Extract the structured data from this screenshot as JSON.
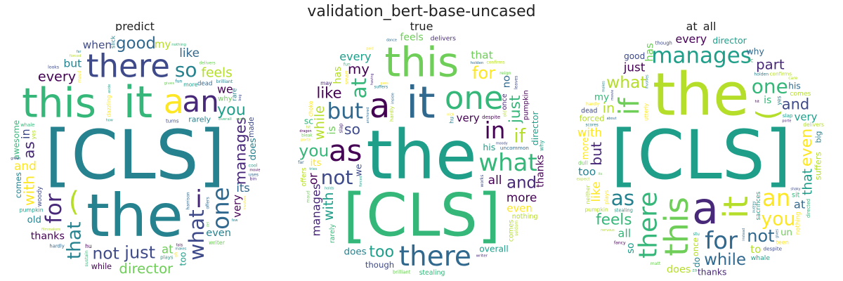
{
  "figure": {
    "title": "validation_bert-base-uncased"
  },
  "panels": [
    {
      "id": "predict",
      "title": "predict",
      "words": [
        "[CLS]",
        "the",
        "it",
        "this",
        "a",
        "there",
        "an",
        "(",
        "i",
        "one",
        "for",
        "what",
        "so",
        "that",
        "just",
        "not",
        "good",
        "you",
        "as",
        "manages",
        "with",
        "director",
        "every",
        "feels",
        "and",
        "like",
        "at",
        "its",
        "in",
        "we",
        "but",
        "when",
        "my",
        "very",
        "even",
        "thanks",
        "while",
        "rarely",
        "does",
        "old",
        "why",
        "too",
        "more",
        "pumpkin",
        "writer",
        "something",
        "brilliant",
        "awesome",
        "dazzling",
        "exquisite",
        "intriguing",
        "excessive",
        "directed",
        "delivers",
        "rare",
        "comes",
        "turns",
        "beautifully",
        "woody",
        "plays",
        "gives",
        "overall",
        "dead",
        "whale",
        "hardly",
        "nothing",
        "forced",
        "slick",
        "made",
        "sustain",
        "looks",
        "cool",
        "involves",
        "falls",
        "makes",
        "crack",
        "suffers",
        "harrison",
        "movie",
        "hilarious",
        "featuring",
        "filmmakers",
        "griffiths",
        "dense",
        "combining",
        "smart",
        "bennett",
        "bleak",
        "maud",
        "aside",
        "fun",
        "slap",
        "sacrifices",
        "building",
        "preach",
        "uses",
        "offers",
        "belongs",
        "altogether",
        "chilling",
        "corpus",
        "confirms",
        "entertain",
        "fancy",
        "how",
        "bog",
        "few",
        "porte",
        "anchored",
        "seldom",
        "hu",
        "outer",
        "choke",
        "green",
        "feature",
        "bin",
        "far",
        "det",
        "challenging",
        "stephen",
        "travels",
        "almost",
        "enormous",
        "professionally",
        "serving",
        "inside",
        "sometimes",
        "american",
        "teen",
        "taylor",
        "care",
        "some",
        "against",
        "based",
        "exciting",
        "yes",
        "reign",
        "collateral",
        "wince",
        "worth",
        "expect",
        "here",
        "del",
        "works",
        "complete",
        "puts",
        "oh",
        "still"
      ]
    },
    {
      "id": "true",
      "title": "true",
      "words": [
        "the",
        "[CLS]",
        "it",
        "this",
        "a",
        "one",
        "as",
        "there",
        "what",
        "in",
        "but",
        "at",
        "not",
        "if",
        "for",
        "you",
        "and",
        "too",
        "just",
        "like",
        "so",
        "my",
        "with",
        "while",
        "all",
        "more",
        "or",
        "manages",
        "every",
        "director",
        "that",
        "is",
        "very",
        "even",
        "no",
        "has",
        "feels",
        "thanks",
        "does",
        "its",
        "his",
        "we",
        "sc",
        "pumpkin",
        "overall",
        "nothing",
        "comes",
        "once",
        "offers",
        "rarely",
        "though",
        "stealing",
        "delivers",
        "uncommon",
        "suffers",
        "entertain",
        "bleak",
        "despite",
        "feature",
        "hardly",
        "writer",
        "slap",
        "smart",
        "holden",
        "inside",
        "porte",
        "brilliant",
        "hilarious",
        "characters",
        "reign",
        "forced",
        "choke",
        "determined",
        "chilling",
        "anchored",
        "confirms",
        "dragon",
        "leaves",
        "may",
        "fun",
        "tries",
        "holds",
        "why",
        "nick",
        "hit",
        "pass",
        "sticky",
        "belongs",
        "altogether",
        "taylor",
        "audrey",
        "moody",
        "shaky",
        "about",
        "travels",
        "sacrifices",
        "neither",
        "paid",
        "having",
        "maud",
        "seldom",
        "surprising",
        "combining",
        "attempts",
        "outer",
        "works",
        "old",
        "dance",
        "hu",
        "far",
        "care",
        "excessive",
        "instead",
        "featuring",
        "beautifully"
      ]
    },
    {
      "id": "at_all",
      "title": "at_all",
      "words": [
        "[CLS]",
        "the",
        "a",
        "this",
        "it",
        "there",
        "(",
        "if",
        "for",
        "an",
        "manages",
        "as",
        "one",
        "you",
        "not",
        "what",
        "while",
        "even",
        "feels",
        "and",
        "but",
        "part",
        "in",
        "that",
        "like",
        "just",
        "with",
        "at",
        "all",
        "every",
        "too",
        "to",
        "has",
        "very",
        "does",
        "forced",
        "is",
        "so",
        "my",
        "un",
        "director",
        "why",
        "more",
        "thanks",
        "his",
        "good",
        "do",
        "pumpkin",
        "suffers",
        "utterly",
        "delivers",
        "dead",
        "whale",
        "comes",
        "confirms",
        "despite",
        "once",
        "scores",
        "slap",
        "big",
        "expect",
        "sacrifices",
        "nothing",
        "basically",
        "though",
        "stealing",
        "something",
        "sustain",
        "directed",
        "teen",
        "sit",
        "neither",
        "plays",
        "nervous",
        "matt",
        "holden",
        "porte",
        "fancy",
        "hardly",
        "audrey",
        "stu",
        "dull",
        "smoothly",
        "brilliant",
        "moody",
        "bleak",
        "makes",
        "excessive",
        "involves",
        "about",
        "determined",
        "yes",
        "american",
        "another",
        "shaky",
        "seldom",
        "instead",
        "belongs",
        "writer",
        "care",
        "hit",
        "uncommon",
        "movie",
        "complete",
        "za",
        "its",
        "sc",
        "overall",
        "entertain",
        "some",
        "gives",
        "without",
        "inside",
        "charm",
        "almost",
        "exquisite",
        "falls",
        "building",
        "unfortunately"
      ]
    }
  ],
  "colors": {
    "background": "#ffffff",
    "palette": [
      "#440154",
      "#482878",
      "#3e4a89",
      "#31688e",
      "#26828e",
      "#1f9e89",
      "#35b779",
      "#6ece58",
      "#b5de2b",
      "#fde725"
    ]
  }
}
